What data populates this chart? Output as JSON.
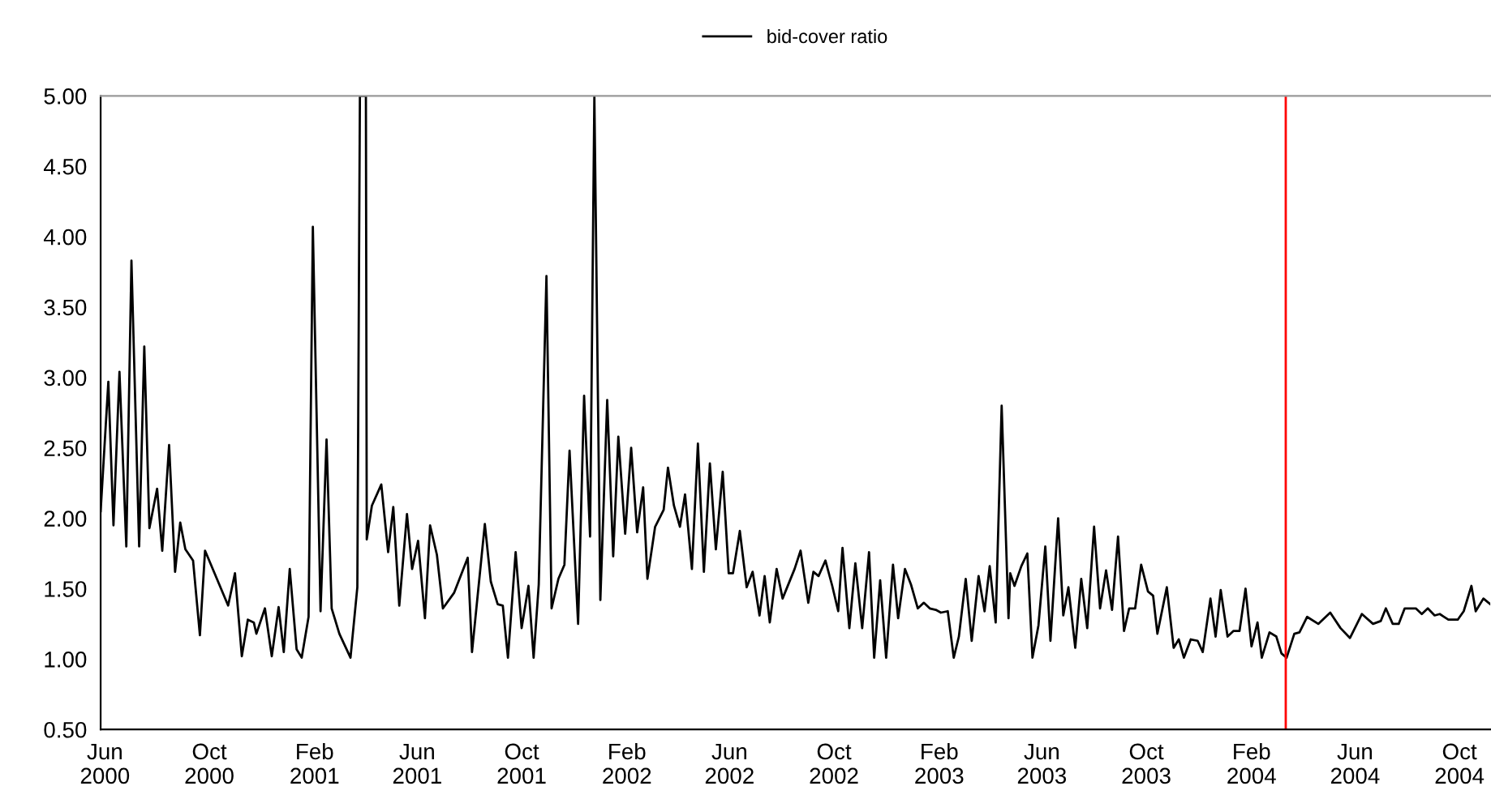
{
  "chart_data": {
    "type": "line",
    "x": [
      "2000-05-27",
      "2000-06-05",
      "2000-06-11",
      "2000-06-18",
      "2000-06-26",
      "2000-07-02",
      "2000-07-11",
      "2000-07-17",
      "2000-07-23",
      "2000-08-01",
      "2000-08-07",
      "2000-08-15",
      "2000-08-22",
      "2000-08-28",
      "2000-09-03",
      "2000-09-12",
      "2000-09-20",
      "2000-09-26",
      "2000-10-23",
      "2000-10-31",
      "2000-11-08",
      "2000-11-15",
      "2000-11-22",
      "2000-11-25",
      "2000-12-05",
      "2000-12-13",
      "2000-12-21",
      "2000-12-27",
      "2001-01-03",
      "2001-01-11",
      "2001-01-17",
      "2001-01-25",
      "2001-01-30",
      "2001-02-08",
      "2001-02-15",
      "2001-02-21",
      "2001-03-02",
      "2001-03-15",
      "2001-03-23",
      "2001-03-26",
      "2001-04-02",
      "2001-04-03",
      "2001-04-09",
      "2001-04-20",
      "2001-04-28",
      "2001-05-04",
      "2001-05-11",
      "2001-05-20",
      "2001-05-26",
      "2001-06-02",
      "2001-06-10",
      "2001-06-16",
      "2001-06-24",
      "2001-07-01",
      "2001-07-14",
      "2001-07-30",
      "2001-08-04",
      "2001-08-19",
      "2001-08-26",
      "2001-09-03",
      "2001-09-09",
      "2001-09-15",
      "2001-09-24",
      "2001-10-01",
      "2001-10-09",
      "2001-10-15",
      "2001-10-21",
      "2001-10-30",
      "2001-11-05",
      "2001-11-13",
      "2001-11-20",
      "2001-11-26",
      "2001-12-06",
      "2001-12-13",
      "2001-12-20",
      "2001-12-25",
      "2002-01-01",
      "2002-01-09",
      "2002-01-16",
      "2002-01-22",
      "2002-01-30",
      "2002-02-06",
      "2002-02-13",
      "2002-02-20",
      "2002-02-25",
      "2002-03-06",
      "2002-03-16",
      "2002-03-21",
      "2002-03-28",
      "2002-04-04",
      "2002-04-10",
      "2002-04-18",
      "2002-04-25",
      "2002-05-02",
      "2002-05-09",
      "2002-05-16",
      "2002-05-24",
      "2002-05-31",
      "2002-06-05",
      "2002-06-13",
      "2002-06-21",
      "2002-06-28",
      "2002-07-06",
      "2002-07-12",
      "2002-07-18",
      "2002-07-26",
      "2002-08-02",
      "2002-08-16",
      "2002-08-23",
      "2002-09-01",
      "2002-09-07",
      "2002-09-13",
      "2002-09-21",
      "2002-09-29",
      "2002-10-06",
      "2002-10-11",
      "2002-10-19",
      "2002-10-26",
      "2002-11-03",
      "2002-11-11",
      "2002-11-17",
      "2002-11-24",
      "2002-12-01",
      "2002-12-09",
      "2002-12-15",
      "2002-12-23",
      "2002-12-30",
      "2003-01-07",
      "2003-01-14",
      "2003-01-21",
      "2003-01-28",
      "2003-02-03",
      "2003-02-11",
      "2003-02-18",
      "2003-02-24",
      "2003-03-04",
      "2003-03-11",
      "2003-03-19",
      "2003-03-26",
      "2003-04-01",
      "2003-04-08",
      "2003-04-15",
      "2003-04-23",
      "2003-04-25",
      "2003-04-30",
      "2003-05-08",
      "2003-05-15",
      "2003-05-21",
      "2003-05-28",
      "2003-06-05",
      "2003-06-11",
      "2003-06-20",
      "2003-06-26",
      "2003-07-02",
      "2003-07-10",
      "2003-07-17",
      "2003-07-24",
      "2003-08-01",
      "2003-08-08",
      "2003-08-15",
      "2003-08-22",
      "2003-08-29",
      "2003-09-05",
      "2003-09-11",
      "2003-09-18",
      "2003-09-25",
      "2003-10-03",
      "2003-10-09",
      "2003-10-14",
      "2003-10-25",
      "2003-11-02",
      "2003-11-08",
      "2003-11-14",
      "2003-11-22",
      "2003-11-30",
      "2003-12-06",
      "2003-12-15",
      "2003-12-21",
      "2003-12-27",
      "2004-01-04",
      "2004-01-11",
      "2004-01-18",
      "2004-01-25",
      "2004-02-01",
      "2004-02-08",
      "2004-02-13",
      "2004-02-22",
      "2004-03-01",
      "2004-03-07",
      "2004-03-13",
      "2004-03-22",
      "2004-03-28",
      "2004-04-06",
      "2004-04-19",
      "2004-05-03",
      "2004-05-15",
      "2004-05-26",
      "2004-06-09",
      "2004-06-22",
      "2004-07-01",
      "2004-07-07",
      "2004-07-15",
      "2004-07-22",
      "2004-07-29",
      "2004-08-11",
      "2004-08-18",
      "2004-08-25",
      "2004-09-02",
      "2004-09-08",
      "2004-09-18",
      "2004-09-29",
      "2004-10-06",
      "2004-10-15",
      "2004-10-20",
      "2004-10-29",
      "2004-11-06"
    ],
    "series": [
      {
        "name": "bid-cover ratio",
        "color": "#000000",
        "values": [
          2.05,
          2.97,
          1.95,
          3.04,
          1.8,
          3.83,
          1.8,
          3.22,
          1.93,
          2.21,
          1.77,
          2.52,
          1.62,
          1.97,
          1.78,
          1.7,
          1.17,
          1.77,
          1.38,
          1.61,
          1.02,
          1.28,
          1.26,
          1.18,
          1.36,
          1.02,
          1.37,
          1.05,
          1.64,
          1.07,
          1.01,
          1.3,
          4.07,
          1.34,
          2.56,
          1.36,
          1.18,
          1.01,
          1.51,
          5.0,
          5.0,
          1.85,
          2.09,
          2.24,
          1.76,
          2.08,
          1.38,
          2.03,
          1.64,
          1.84,
          1.29,
          1.95,
          1.74,
          1.36,
          1.47,
          1.72,
          1.05,
          1.96,
          1.55,
          1.39,
          1.38,
          1.01,
          1.76,
          1.22,
          1.52,
          1.01,
          1.53,
          3.72,
          1.36,
          1.57,
          1.67,
          2.48,
          1.25,
          2.87,
          1.87,
          5.0,
          1.42,
          2.84,
          1.73,
          2.58,
          1.89,
          2.5,
          1.9,
          2.22,
          1.57,
          1.94,
          2.06,
          2.36,
          2.09,
          1.94,
          2.17,
          1.64,
          2.53,
          1.62,
          2.39,
          1.78,
          2.33,
          1.61,
          1.61,
          1.91,
          1.51,
          1.62,
          1.31,
          1.59,
          1.26,
          1.64,
          1.43,
          1.64,
          1.77,
          1.4,
          1.62,
          1.59,
          1.7,
          1.52,
          1.34,
          1.79,
          1.22,
          1.68,
          1.22,
          1.76,
          1.01,
          1.56,
          1.01,
          1.67,
          1.29,
          1.64,
          1.53,
          1.36,
          1.4,
          1.36,
          1.35,
          1.33,
          1.34,
          1.01,
          1.16,
          1.57,
          1.13,
          1.59,
          1.34,
          1.66,
          1.26,
          2.8,
          1.29,
          1.61,
          1.52,
          1.66,
          1.75,
          1.01,
          1.24,
          1.8,
          1.13,
          2.0,
          1.31,
          1.51,
          1.08,
          1.57,
          1.22,
          1.94,
          1.36,
          1.63,
          1.35,
          1.87,
          1.2,
          1.36,
          1.36,
          1.67,
          1.48,
          1.45,
          1.18,
          1.51,
          1.08,
          1.14,
          1.01,
          1.14,
          1.13,
          1.05,
          1.43,
          1.16,
          1.49,
          1.16,
          1.2,
          1.2,
          1.5,
          1.09,
          1.26,
          1.01,
          1.19,
          1.16,
          1.04,
          1.01,
          1.18,
          1.19,
          1.3,
          1.25,
          1.33,
          1.22,
          1.15,
          1.32,
          1.25,
          1.27,
          1.36,
          1.25,
          1.25,
          1.36,
          1.36,
          1.32,
          1.36,
          1.31,
          1.32,
          1.28,
          1.28,
          1.34,
          1.52,
          1.34,
          1.43,
          1.39
        ]
      }
    ],
    "xlim": [
      "2000-05-27",
      "2004-11-06"
    ],
    "xticks": [
      {
        "value": "2000-06-01",
        "label": "Jun\n2000"
      },
      {
        "value": "2000-10-01",
        "label": "Oct\n2000"
      },
      {
        "value": "2001-02-01",
        "label": "Feb\n2001"
      },
      {
        "value": "2001-06-01",
        "label": "Jun\n2001"
      },
      {
        "value": "2001-10-01",
        "label": "Oct\n2001"
      },
      {
        "value": "2002-02-01",
        "label": "Feb\n2002"
      },
      {
        "value": "2002-06-01",
        "label": "Jun\n2002"
      },
      {
        "value": "2002-10-01",
        "label": "Oct\n2002"
      },
      {
        "value": "2003-02-01",
        "label": "Feb\n2003"
      },
      {
        "value": "2003-06-01",
        "label": "Jun\n2003"
      },
      {
        "value": "2003-10-01",
        "label": "Oct\n2003"
      },
      {
        "value": "2004-02-01",
        "label": "Feb\n2004"
      },
      {
        "value": "2004-06-01",
        "label": "Jun\n2004"
      },
      {
        "value": "2004-10-01",
        "label": "Oct\n2004"
      }
    ],
    "ylim": [
      0.5,
      5.0
    ],
    "yticks": [
      {
        "value": 0.5,
        "label": "0.50"
      },
      {
        "value": 1.0,
        "label": "1.00"
      },
      {
        "value": 1.5,
        "label": "1.50"
      },
      {
        "value": 2.0,
        "label": "2.00"
      },
      {
        "value": 2.5,
        "label": "2.50"
      },
      {
        "value": 3.0,
        "label": "3.00"
      },
      {
        "value": 3.5,
        "label": "3.50"
      },
      {
        "value": 4.0,
        "label": "4.00"
      },
      {
        "value": 4.5,
        "label": "4.50"
      },
      {
        "value": 5.0,
        "label": "5.00"
      }
    ],
    "ref_lines": [
      {
        "axis": "x",
        "value": "2004-03-12",
        "color": "#ff0000"
      }
    ],
    "legend": "top",
    "grid": false
  }
}
